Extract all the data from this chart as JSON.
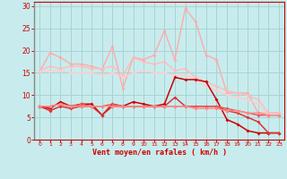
{
  "bg_color": "#c8eced",
  "grid_color": "#a8d4d5",
  "xlabel": "Vent moyen/en rafales ( km/h )",
  "xlabel_color": "#cc0000",
  "tick_color": "#cc0000",
  "ylim": [
    0,
    31
  ],
  "xlim": [
    -0.5,
    23.5
  ],
  "yticks": [
    0,
    5,
    10,
    15,
    20,
    25,
    30
  ],
  "xticks": [
    0,
    1,
    2,
    3,
    4,
    5,
    6,
    7,
    8,
    9,
    10,
    11,
    12,
    13,
    14,
    15,
    16,
    17,
    18,
    19,
    20,
    21,
    22,
    23
  ],
  "lines": [
    {
      "x": [
        0,
        1,
        2,
        3,
        4,
        5,
        6,
        7,
        8,
        9,
        10,
        11,
        12,
        13,
        14,
        15,
        16,
        17,
        18,
        19,
        20,
        21,
        22,
        23
      ],
      "y": [
        15.3,
        19.5,
        18.5,
        17.0,
        17.0,
        16.5,
        15.8,
        21.0,
        11.5,
        18.5,
        18.0,
        19.0,
        24.5,
        18.0,
        29.5,
        26.5,
        19.0,
        18.0,
        10.5,
        10.5,
        10.5,
        6.0,
        6.0,
        6.0
      ],
      "color": "#ffaaaa",
      "lw": 1.0
    },
    {
      "x": [
        0,
        1,
        2,
        3,
        4,
        5,
        6,
        7,
        8,
        9,
        10,
        11,
        12,
        13,
        14,
        15,
        16,
        17,
        18,
        19,
        20,
        21,
        22,
        23
      ],
      "y": [
        15.5,
        16.5,
        16.0,
        16.5,
        16.5,
        16.0,
        16.0,
        16.5,
        14.5,
        18.5,
        17.5,
        17.0,
        17.5,
        15.5,
        16.0,
        14.0,
        13.0,
        12.0,
        11.0,
        10.5,
        10.0,
        9.0,
        6.0,
        6.0
      ],
      "color": "#ffbbbb",
      "lw": 1.0
    },
    {
      "x": [
        0,
        1,
        2,
        3,
        4,
        5,
        6,
        7,
        8,
        9,
        10,
        11,
        12,
        13,
        14,
        15,
        16,
        17,
        18,
        19,
        20,
        21,
        22,
        23
      ],
      "y": [
        15.2,
        15.5,
        15.5,
        15.0,
        15.0,
        15.0,
        14.5,
        15.0,
        14.0,
        15.0,
        15.5,
        15.0,
        15.0,
        14.5,
        14.5,
        13.5,
        12.0,
        11.0,
        10.0,
        9.5,
        9.0,
        8.0,
        5.5,
        5.5
      ],
      "color": "#ffcccc",
      "lw": 1.0
    },
    {
      "x": [
        0,
        1,
        2,
        3,
        4,
        5,
        6,
        7,
        8,
        9,
        10,
        11,
        12,
        13,
        14,
        15,
        16,
        17,
        18,
        19,
        20,
        21,
        22,
        23
      ],
      "y": [
        7.5,
        7.0,
        8.5,
        7.5,
        8.0,
        8.0,
        5.5,
        8.0,
        7.5,
        8.5,
        8.0,
        7.5,
        8.0,
        14.0,
        13.5,
        13.5,
        13.0,
        9.0,
        4.5,
        3.5,
        2.0,
        1.5,
        1.5,
        1.5
      ],
      "color": "#cc0000",
      "lw": 1.1
    },
    {
      "x": [
        0,
        1,
        2,
        3,
        4,
        5,
        6,
        7,
        8,
        9,
        10,
        11,
        12,
        13,
        14,
        15,
        16,
        17,
        18,
        19,
        20,
        21,
        22,
        23
      ],
      "y": [
        7.5,
        6.5,
        7.5,
        7.0,
        7.5,
        7.5,
        5.5,
        7.5,
        7.5,
        7.5,
        7.5,
        7.5,
        7.5,
        9.5,
        7.5,
        7.5,
        7.5,
        7.5,
        6.5,
        6.0,
        5.0,
        4.0,
        1.5,
        1.5
      ],
      "color": "#dd3333",
      "lw": 1.1
    },
    {
      "x": [
        0,
        1,
        2,
        3,
        4,
        5,
        6,
        7,
        8,
        9,
        10,
        11,
        12,
        13,
        14,
        15,
        16,
        17,
        18,
        19,
        20,
        21,
        22,
        23
      ],
      "y": [
        7.5,
        7.5,
        8.0,
        7.5,
        8.0,
        7.5,
        7.5,
        8.0,
        7.5,
        7.5,
        7.5,
        7.5,
        7.5,
        7.5,
        7.5,
        7.5,
        7.5,
        7.5,
        7.0,
        6.5,
        6.0,
        5.5,
        5.5,
        5.5
      ],
      "color": "#ee5555",
      "lw": 1.0
    },
    {
      "x": [
        0,
        1,
        2,
        3,
        4,
        5,
        6,
        7,
        8,
        9,
        10,
        11,
        12,
        13,
        14,
        15,
        16,
        17,
        18,
        19,
        20,
        21,
        22,
        23
      ],
      "y": [
        7.5,
        7.5,
        8.0,
        7.5,
        7.5,
        7.5,
        7.5,
        7.5,
        7.5,
        7.5,
        7.5,
        7.5,
        7.5,
        7.5,
        7.5,
        7.0,
        7.0,
        7.0,
        6.5,
        6.5,
        6.0,
        6.0,
        5.5,
        5.5
      ],
      "color": "#ff8888",
      "lw": 1.0
    }
  ],
  "marker": "D",
  "markersize": 2.0
}
